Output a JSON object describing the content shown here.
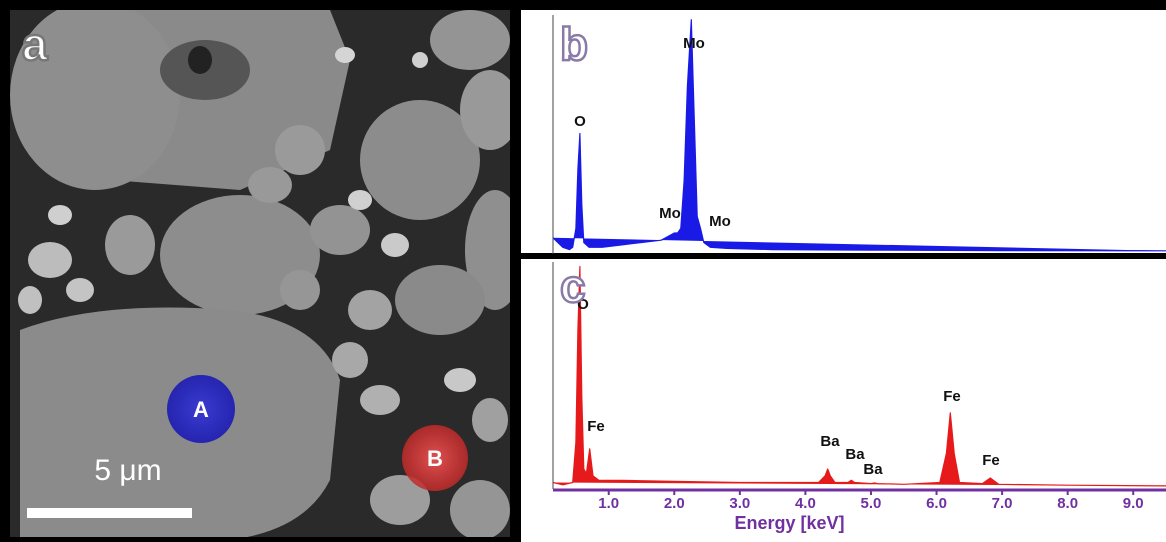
{
  "panel_a": {
    "label": "a",
    "scale_bar": "5 μm",
    "spots": [
      "A",
      "B"
    ]
  },
  "chart_data": [
    {
      "type": "line",
      "label": "b",
      "color": "#1a1ae6",
      "xlim": [
        0.15,
        9.5
      ],
      "ylim": [
        0,
        100
      ],
      "x": [
        0.15,
        0.3,
        0.4,
        0.45,
        0.5,
        0.53,
        0.56,
        0.59,
        0.62,
        0.7,
        0.9,
        1.2,
        1.5,
        1.8,
        2.0,
        2.05,
        2.1,
        2.15,
        2.2,
        2.26,
        2.3,
        2.35,
        2.4,
        2.45,
        2.55,
        2.8,
        3.5,
        5,
        7,
        9.5
      ],
      "values": [
        6,
        2,
        1,
        2,
        10,
        35,
        50,
        20,
        4,
        2,
        2,
        3,
        4,
        5,
        8,
        8,
        10,
        30,
        70,
        98,
        60,
        15,
        10,
        4,
        2,
        1.5,
        1,
        0.8,
        0.6,
        0.5
      ],
      "annotations": [
        "O",
        "Mo",
        "Mo",
        "Mo"
      ]
    },
    {
      "type": "line",
      "label": "c",
      "color": "#e61a1a",
      "xlim": [
        0.15,
        9.5
      ],
      "ylim": [
        0,
        100
      ],
      "x": [
        0.15,
        0.3,
        0.45,
        0.5,
        0.53,
        0.56,
        0.59,
        0.62,
        0.66,
        0.71,
        0.76,
        0.85,
        1.2,
        2,
        3,
        4.2,
        4.3,
        4.34,
        4.38,
        4.45,
        4.65,
        4.7,
        4.75,
        5,
        5.05,
        5.1,
        5.5,
        6.05,
        6.15,
        6.21,
        6.27,
        6.35,
        6.7,
        6.82,
        6.95,
        8,
        9.5
      ],
      "values": [
        2,
        1,
        2,
        20,
        70,
        98,
        40,
        8,
        6,
        17,
        5,
        3,
        3,
        2.5,
        2,
        2,
        5,
        8,
        5,
        2,
        2,
        3,
        2,
        1.5,
        1.8,
        1.5,
        1.2,
        2,
        15,
        33,
        15,
        2,
        1.5,
        4,
        1.2,
        0.8,
        0.5
      ],
      "xticks": [
        {
          "value": 1,
          "label": "1.0"
        },
        {
          "value": 2,
          "label": "2.0"
        },
        {
          "value": 3,
          "label": "3.0"
        },
        {
          "value": 4,
          "label": "4.0"
        },
        {
          "value": 5,
          "label": "5.0"
        },
        {
          "value": 6,
          "label": "6.0"
        },
        {
          "value": 7,
          "label": "7.0"
        },
        {
          "value": 8,
          "label": "8.0"
        },
        {
          "value": 9,
          "label": "9.0"
        }
      ],
      "xlabel": "Energy [keV]",
      "axis_color": "#7030a0",
      "annotations": [
        "O",
        "Fe",
        "Ba",
        "Ba",
        "Ba",
        "Fe",
        "Fe"
      ]
    }
  ]
}
